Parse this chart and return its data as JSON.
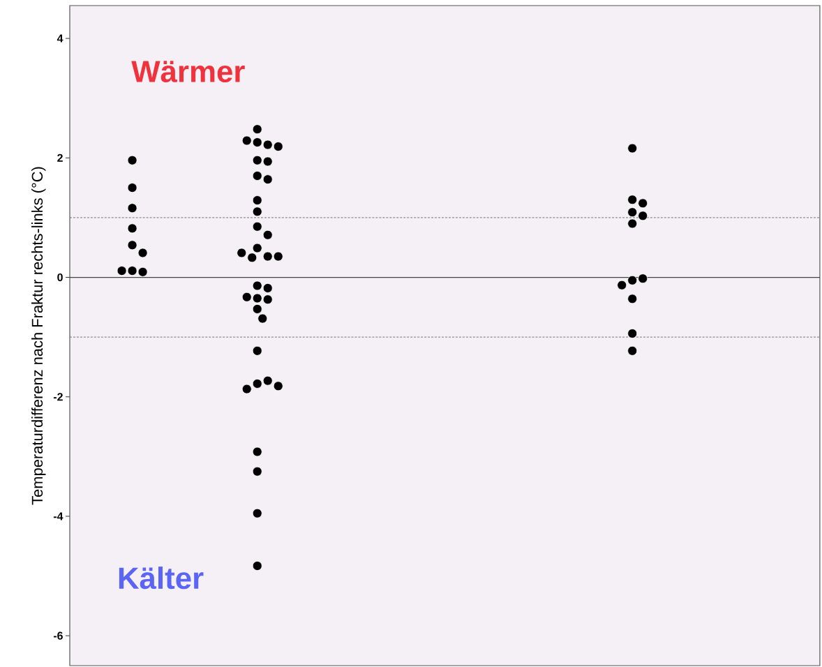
{
  "chart_data": {
    "type": "scatter",
    "ylabel": "Temperaturdifferenz nach Fraktur rechts-links (°C)",
    "annotations": [
      "Wärmer",
      "Kälter"
    ],
    "categories": [
      null,
      null,
      null,
      null,
      null,
      null
    ],
    "ylim": [
      -6.5,
      4.55
    ],
    "yticks": [
      -6,
      -4,
      -2,
      0,
      2,
      4
    ],
    "tick_labels": "y",
    "marker": "circle",
    "ref_lines": [
      {
        "axis": "y",
        "value": 1,
        "line_style": "dashed",
        "color": "#666666"
      },
      {
        "axis": "y",
        "value": 0,
        "line_style": "solid",
        "color": "#444444"
      },
      {
        "axis": "y",
        "value": -1,
        "line_style": "dashed",
        "color": "#666666"
      }
    ],
    "series": [
      {
        "color": "#000000",
        "values": [
          1.96,
          2.48,
          null,
          null,
          2.16,
          null
        ]
      },
      {
        "color": "#000000",
        "values": [
          1.5,
          2.26,
          null,
          null,
          1.3,
          null
        ]
      },
      {
        "color": "#000000",
        "values": [
          1.16,
          2.22,
          null,
          null,
          1.24,
          null
        ]
      },
      {
        "color": "#000000",
        "values": [
          0.82,
          2.29,
          null,
          null,
          1.09,
          null
        ]
      },
      {
        "color": "#000000",
        "values": [
          0.54,
          2.19,
          null,
          null,
          1.03,
          null
        ]
      },
      {
        "color": "#000000",
        "values": [
          0.41,
          1.96,
          null,
          null,
          0.9,
          null
        ]
      },
      {
        "color": "#000000",
        "values": [
          0.11,
          1.94,
          null,
          null,
          -0.05,
          null
        ]
      },
      {
        "color": "#000000",
        "values": [
          0.09,
          1.7,
          null,
          null,
          -0.02,
          null
        ]
      },
      {
        "color": "#000000",
        "values": [
          0.11,
          1.64,
          null,
          null,
          -0.13,
          null
        ]
      },
      {
        "color": "#000000",
        "values": [
          null,
          1.29,
          null,
          null,
          -0.36,
          null
        ]
      },
      {
        "color": "#000000",
        "values": [
          null,
          1.1,
          null,
          null,
          -0.94,
          null
        ]
      },
      {
        "color": "#000000",
        "values": [
          null,
          0.85,
          null,
          null,
          -1.23,
          null
        ]
      },
      {
        "color": "#000000",
        "values": [
          null,
          0.71,
          null,
          null,
          null,
          null
        ]
      },
      {
        "color": "#000000",
        "values": [
          null,
          0.49,
          null,
          null,
          null,
          null
        ]
      },
      {
        "color": "#000000",
        "values": [
          null,
          0.35,
          null,
          null,
          null,
          null
        ]
      },
      {
        "color": "#000000",
        "values": [
          null,
          0.33,
          null,
          null,
          null,
          null
        ]
      },
      {
        "color": "#000000",
        "values": [
          null,
          0.41,
          null,
          null,
          null,
          null
        ]
      },
      {
        "color": "#000000",
        "values": [
          null,
          0.35,
          null,
          null,
          null,
          null
        ]
      },
      {
        "color": "#000000",
        "values": [
          null,
          -0.14,
          null,
          null,
          null,
          null
        ]
      },
      {
        "color": "#000000",
        "values": [
          null,
          -0.18,
          null,
          null,
          null,
          null
        ]
      },
      {
        "color": "#000000",
        "values": [
          null,
          -0.35,
          null,
          null,
          null,
          null
        ]
      },
      {
        "color": "#000000",
        "values": [
          null,
          -0.33,
          null,
          null,
          null,
          null
        ]
      },
      {
        "color": "#000000",
        "values": [
          null,
          -0.37,
          null,
          null,
          null,
          null
        ]
      },
      {
        "color": "#000000",
        "values": [
          null,
          -0.53,
          null,
          null,
          null,
          null
        ]
      },
      {
        "color": "#000000",
        "values": [
          null,
          -0.69,
          null,
          null,
          null,
          null
        ]
      },
      {
        "color": "#000000",
        "values": [
          null,
          -1.23,
          null,
          null,
          null,
          null
        ]
      },
      {
        "color": "#000000",
        "values": [
          null,
          -1.78,
          null,
          null,
          null,
          null
        ]
      },
      {
        "color": "#000000",
        "values": [
          null,
          -1.73,
          null,
          null,
          null,
          null
        ]
      },
      {
        "color": "#000000",
        "values": [
          null,
          -1.87,
          null,
          null,
          null,
          null
        ]
      },
      {
        "color": "#000000",
        "values": [
          null,
          -1.82,
          null,
          null,
          null,
          null
        ]
      },
      {
        "color": "#000000",
        "values": [
          null,
          -2.92,
          null,
          null,
          null,
          null
        ]
      },
      {
        "color": "#000000",
        "values": [
          null,
          -3.25,
          null,
          null,
          null,
          null
        ]
      },
      {
        "color": "#000000",
        "values": [
          null,
          -3.95,
          null,
          null,
          null,
          null
        ]
      },
      {
        "color": "#000000",
        "values": [
          null,
          -4.83,
          null,
          null,
          null,
          null
        ]
      }
    ]
  }
}
